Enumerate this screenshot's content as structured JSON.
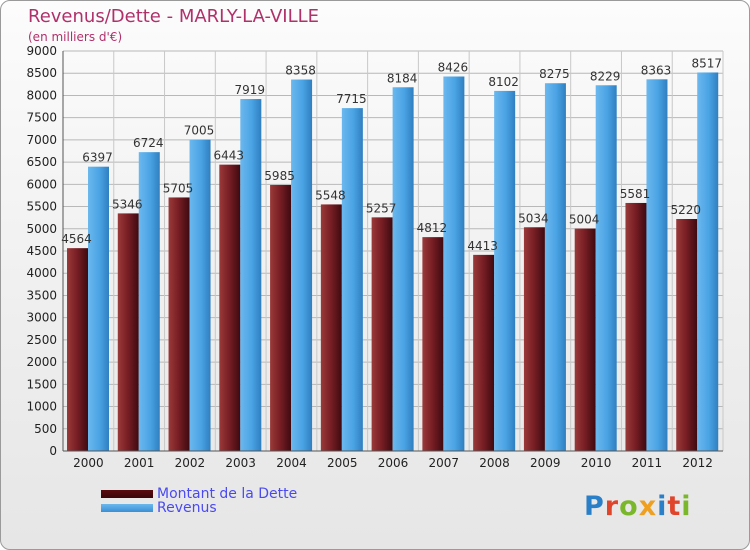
{
  "title": "Revenus/Dette - MARLY-LA-VILLE",
  "subtitle": "(en milliers d'€)",
  "brand": {
    "text": "Proxiti",
    "letter_colors": [
      "#2a7fc9",
      "#e0452c",
      "#7bb72b",
      "#f0a020",
      "#2a7fc9",
      "#e0452c",
      "#7bb72b"
    ]
  },
  "chart_data": {
    "type": "bar",
    "title": "Revenus/Dette - MARLY-LA-VILLE",
    "subtitle": "(en milliers d'€)",
    "xlabel": "",
    "ylabel": "",
    "ylim": [
      0,
      9000
    ],
    "yticks": [
      0,
      500,
      1000,
      1500,
      2000,
      2500,
      3000,
      3500,
      4000,
      4500,
      5000,
      5500,
      6000,
      6500,
      7000,
      7500,
      8000,
      8500,
      9000
    ],
    "grid": true,
    "legend_position": "bottom-left",
    "categories": [
      "2000",
      "2001",
      "2002",
      "2003",
      "2004",
      "2005",
      "2006",
      "2007",
      "2008",
      "2009",
      "2010",
      "2011",
      "2012"
    ],
    "series": [
      {
        "name": "Montant de la Dette",
        "color": "#7a1f25",
        "values": [
          4564,
          5346,
          5705,
          6443,
          5985,
          5548,
          5257,
          4812,
          4413,
          5034,
          5004,
          5581,
          5220
        ],
        "labels": [
          "4564",
          "5346",
          "5705",
          "6443",
          "5985",
          "5548",
          "5257",
          "4812",
          "4413",
          "5034",
          "5004",
          "5581",
          "5220"
        ]
      },
      {
        "name": "Revenus",
        "color": "#4aa3e4",
        "values": [
          6397,
          6724,
          7005,
          7919,
          8358,
          7715,
          8184,
          8426,
          8102,
          8275,
          8229,
          8363,
          8517
        ],
        "labels": [
          "6397",
          "6724",
          "7005",
          "7919",
          "8358",
          "7715",
          "8184",
          "8426",
          "8102",
          "8275",
          "8229",
          "8363",
          "8517"
        ]
      }
    ]
  }
}
